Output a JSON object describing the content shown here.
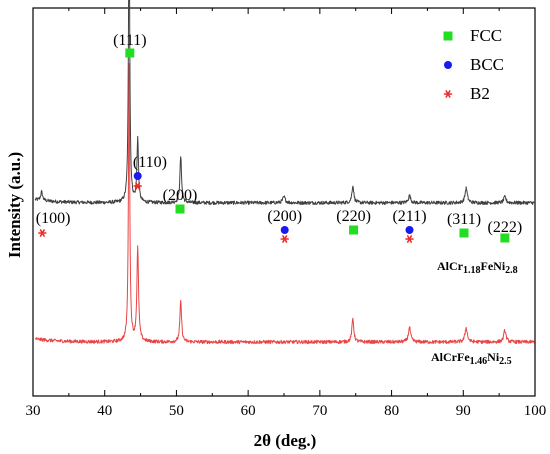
{
  "chart_data": {
    "type": "line",
    "xlabel": "2θ (deg.)",
    "ylabel": "Intensity (a.u.)",
    "xlim": [
      30,
      100
    ],
    "xticks": [
      30,
      40,
      50,
      60,
      70,
      80,
      90,
      100
    ],
    "yticks": [],
    "grid": false,
    "legend": {
      "position": "top-right",
      "entries": [
        {
          "label": "FCC",
          "marker": "square",
          "color": "#22dd22"
        },
        {
          "label": "BCC",
          "marker": "circle",
          "color": "#1a1aee"
        },
        {
          "label": "B2",
          "marker": "asterisk",
          "color": "#ee2a2a"
        }
      ]
    },
    "series": [
      {
        "label_parts": [
          {
            "text": "AlCr"
          },
          {
            "text": "1.18",
            "sub": true
          },
          {
            "text": "FeNi"
          },
          {
            "text": "2.8",
            "sub": true
          }
        ],
        "color": "#404040",
        "baseline": 0.48,
        "peaks": [
          {
            "x": 31.2,
            "h": 0.03,
            "w": 0.25
          },
          {
            "x": 43.4,
            "h": 1.0,
            "w": 0.17
          },
          {
            "x": 44.6,
            "h": 0.22,
            "w": 0.2
          },
          {
            "x": 50.6,
            "h": 0.16,
            "w": 0.22
          },
          {
            "x": 65.0,
            "h": 0.02,
            "w": 0.35
          },
          {
            "x": 74.6,
            "h": 0.06,
            "w": 0.25
          },
          {
            "x": 82.5,
            "h": 0.025,
            "w": 0.3
          },
          {
            "x": 90.4,
            "h": 0.05,
            "w": 0.3
          },
          {
            "x": 95.8,
            "h": 0.02,
            "w": 0.3
          }
        ]
      },
      {
        "label_parts": [
          {
            "text": "AlCrFe"
          },
          {
            "text": "1.46",
            "sub": true
          },
          {
            "text": "Ni"
          },
          {
            "text": "2.5",
            "sub": true
          }
        ],
        "color": "#e84545",
        "baseline": 0.0,
        "peaks": [
          {
            "x": 43.4,
            "h": 0.95,
            "w": 0.17
          },
          {
            "x": 44.6,
            "h": 0.32,
            "w": 0.22
          },
          {
            "x": 50.6,
            "h": 0.14,
            "w": 0.22
          },
          {
            "x": 74.6,
            "h": 0.08,
            "w": 0.25
          },
          {
            "x": 82.5,
            "h": 0.05,
            "w": 0.3
          },
          {
            "x": 90.4,
            "h": 0.05,
            "w": 0.3
          },
          {
            "x": 95.8,
            "h": 0.04,
            "w": 0.3
          }
        ]
      }
    ],
    "annotations": [
      {
        "text": "(100)",
        "x": 32.8,
        "markers": [
          "asterisk"
        ]
      },
      {
        "text": "(111)",
        "x": 43.5,
        "markers": [
          "square"
        ]
      },
      {
        "text": "(110)",
        "x": 46.3,
        "markers": [
          "circle",
          "asterisk"
        ]
      },
      {
        "text": "(200)",
        "x": 50.5,
        "markers": [
          "square"
        ]
      },
      {
        "text": "(200)",
        "x": 65.1,
        "markers": [
          "circle",
          "asterisk"
        ]
      },
      {
        "text": "(220)",
        "x": 74.7,
        "markers": [
          "square"
        ]
      },
      {
        "text": "(211)",
        "x": 82.5,
        "markers": [
          "circle",
          "asterisk"
        ]
      },
      {
        "text": "(311)",
        "x": 90.1,
        "markers": [
          "square"
        ]
      },
      {
        "text": "(222)",
        "x": 95.8,
        "markers": [
          "square"
        ]
      }
    ]
  }
}
